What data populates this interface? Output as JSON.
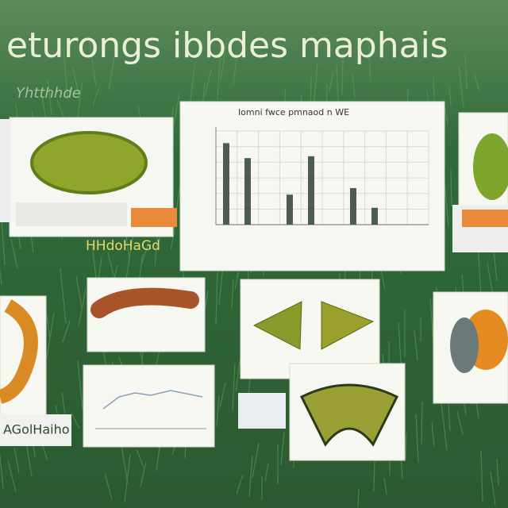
{
  "header": {
    "title": "eturongs ibbdes maphais",
    "subtitle": "Yhtthhde"
  },
  "labels": [
    "HHdoHaGd",
    "AGolHaiho"
  ],
  "chart": {
    "title": "Iomni fwce pmnaod n WE",
    "values": [
      87,
      71,
      32,
      73,
      39,
      18
    ],
    "ylim": [
      0,
      100
    ],
    "color": "#4d5c52"
  }
}
